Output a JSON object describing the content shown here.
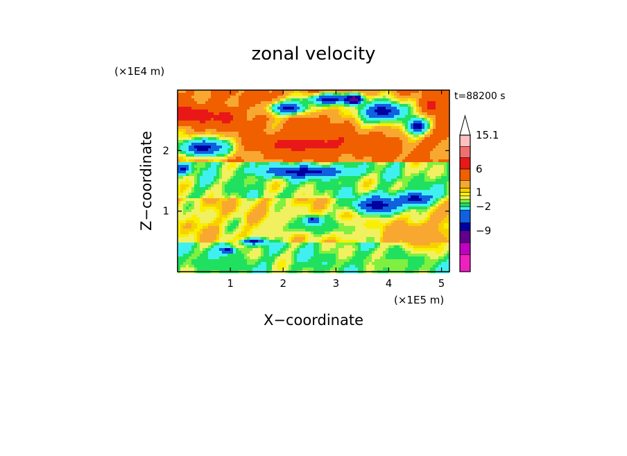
{
  "chart_data": {
    "type": "heatmap",
    "title": "zonal velocity",
    "xlabel": "X−coordinate",
    "ylabel": "Z−coordinate",
    "x_scale_label": "(×1E5 m)",
    "y_scale_label": "(×1E4 m)",
    "time_label": "t=88200 s",
    "xlim": [
      0,
      5.15
    ],
    "ylim": [
      0,
      3.0
    ],
    "x_ticks": [
      1,
      2,
      3,
      4,
      5
    ],
    "y_ticks": [
      1,
      2
    ],
    "colorbar": {
      "labels": [
        "15.1",
        "6",
        "1",
        "−2",
        "−9"
      ],
      "levels_top_to_bottom": [
        15.1,
        12,
        9,
        6,
        3,
        1.5,
        1,
        0.5,
        -0.5,
        -1,
        -2,
        -4,
        -6,
        -9,
        -12,
        -15
      ],
      "colors_top_to_bottom": [
        "#ffffff",
        "#ffc0c0",
        "#f07070",
        "#e81818",
        "#f06000",
        "#f8a830",
        "#f8d000",
        "#f8f000",
        "#f0f060",
        "#80f040",
        "#20e060",
        "#40f0f0",
        "#1060e0",
        "#0000a0",
        "#600090",
        "#c000c0",
        "#f020c0"
      ]
    },
    "field": {
      "description_ok": false,
      "base": [
        {
          "z": [
            0.0,
            0.5
          ],
          "value": -1.2
        },
        {
          "z": [
            0.5,
            1.2
          ],
          "value": 0.8
        },
        {
          "z": [
            1.2,
            1.8
          ],
          "value": -0.8
        },
        {
          "z": [
            1.8,
            3.0
          ],
          "value": 3.5
        }
      ],
      "features": [
        {
          "x": 0.5,
          "z": 2.05,
          "rx": 0.6,
          "rz": 0.18,
          "value": -6
        },
        {
          "x": 0.2,
          "z": 2.6,
          "rx": 0.35,
          "rz": 0.15,
          "value": 7
        },
        {
          "x": 0.9,
          "z": 2.55,
          "rx": 0.3,
          "rz": 0.15,
          "value": 6
        },
        {
          "x": 2.4,
          "z": 1.65,
          "rx": 0.9,
          "rz": 0.1,
          "value": -6
        },
        {
          "x": 2.5,
          "z": 2.1,
          "rx": 1.0,
          "rz": 0.15,
          "value": 6
        },
        {
          "x": 2.9,
          "z": 2.85,
          "rx": 0.5,
          "rz": 0.1,
          "value": -6
        },
        {
          "x": 2.1,
          "z": 2.7,
          "rx": 0.4,
          "rz": 0.12,
          "value": -6
        },
        {
          "x": 3.9,
          "z": 2.65,
          "rx": 0.55,
          "rz": 0.2,
          "value": -6
        },
        {
          "x": 4.55,
          "z": 2.4,
          "rx": 0.25,
          "rz": 0.15,
          "value": -6
        },
        {
          "x": 4.8,
          "z": 2.75,
          "rx": 0.2,
          "rz": 0.15,
          "value": 6
        },
        {
          "x": 3.35,
          "z": 2.85,
          "rx": 0.15,
          "rz": 0.08,
          "value": -10
        },
        {
          "x": 3.8,
          "z": 1.1,
          "rx": 0.55,
          "rz": 0.15,
          "value": -6
        },
        {
          "x": 4.5,
          "z": 1.2,
          "rx": 0.35,
          "rz": 0.12,
          "value": -6
        },
        {
          "x": 4.6,
          "z": 0.6,
          "rx": 0.5,
          "rz": 0.25,
          "value": 2.5
        },
        {
          "x": 2.6,
          "z": 0.75,
          "rx": 0.8,
          "rz": 0.15,
          "value": -1.6
        },
        {
          "x": 2.55,
          "z": 0.85,
          "rx": 0.15,
          "rz": 0.06,
          "value": -6
        },
        {
          "x": 1.45,
          "z": 0.5,
          "rx": 0.25,
          "rz": 0.05,
          "value": -6
        },
        {
          "x": 0.95,
          "z": 0.35,
          "rx": 0.15,
          "rz": 0.06,
          "value": -6
        },
        {
          "x": 4.1,
          "z": 0.15,
          "rx": 0.8,
          "rz": 0.15,
          "value": -0.8
        },
        {
          "x": 0.6,
          "z": 0.15,
          "rx": 0.6,
          "rz": 0.12,
          "value": -1.5
        },
        {
          "x": 0.1,
          "z": 1.7,
          "rx": 0.15,
          "rz": 0.08,
          "value": -6
        }
      ]
    }
  }
}
